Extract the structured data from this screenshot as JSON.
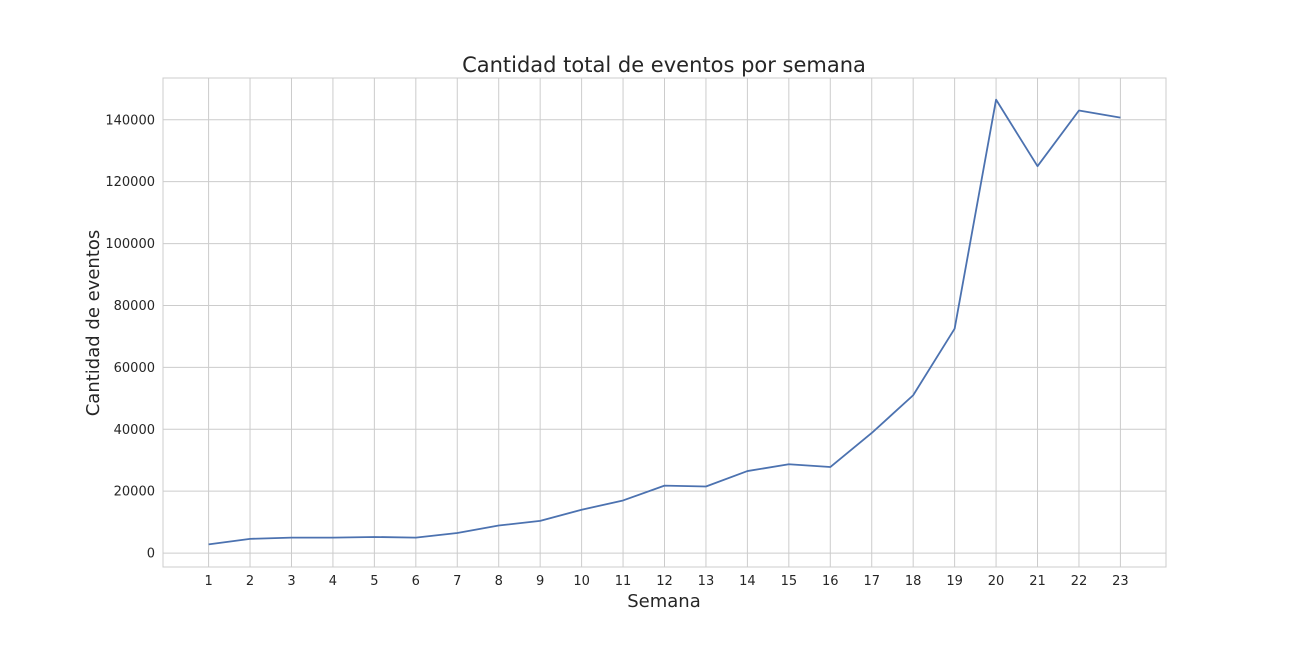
{
  "chart_data": {
    "type": "line",
    "title": "Cantidad total de eventos por semana",
    "xlabel": "Semana",
    "ylabel": "Cantidad de eventos",
    "x": [
      1,
      2,
      3,
      4,
      5,
      6,
      7,
      8,
      9,
      10,
      11,
      12,
      13,
      14,
      15,
      16,
      17,
      18,
      19,
      20,
      21,
      22,
      23
    ],
    "x_tick_labels": [
      "1",
      "2",
      "3",
      "4",
      "5",
      "6",
      "7",
      "8",
      "9",
      "10",
      "11",
      "12",
      "13",
      "14",
      "15",
      "16",
      "17",
      "18",
      "19",
      "20",
      "21",
      "22",
      "23"
    ],
    "y_ticks": [
      0,
      20000,
      40000,
      60000,
      80000,
      100000,
      120000,
      140000
    ],
    "y_tick_labels": [
      "0",
      "20000",
      "40000",
      "60000",
      "80000",
      "100000",
      "120000",
      "140000"
    ],
    "xlim": [
      -0.1,
      24.1
    ],
    "ylim": [
      -4500,
      153500
    ],
    "grid": true,
    "series": [
      {
        "color": "#4c72b0",
        "values": [
          2800,
          4600,
          5000,
          5000,
          5200,
          5000,
          6500,
          8900,
          10400,
          14000,
          17000,
          21800,
          21500,
          26500,
          28700,
          27800,
          38800,
          51000,
          72500,
          146500,
          125000,
          143000,
          140700
        ]
      }
    ]
  }
}
